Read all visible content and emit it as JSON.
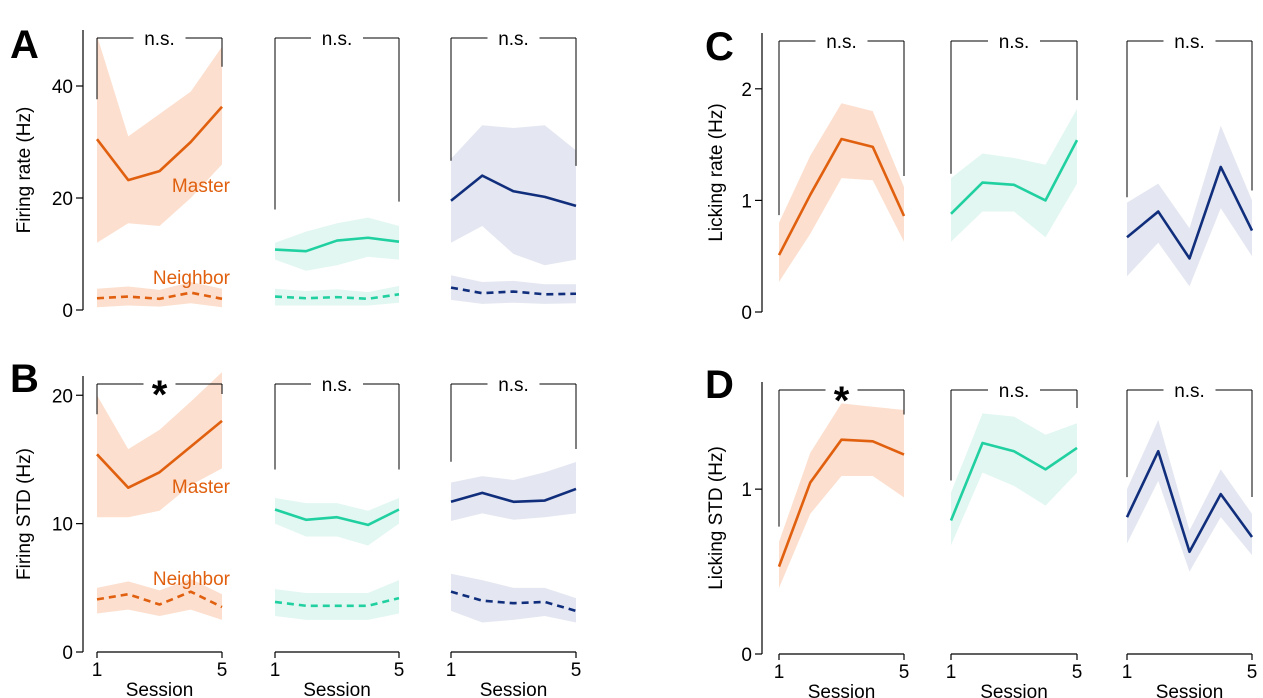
{
  "colors": {
    "orange": "#e0600f",
    "orange_band": "#fbd9c6",
    "teal": "#20d0a0",
    "teal_band": "#ddf6ee",
    "navy": "#102e7c",
    "navy_band": "#dfe3ef"
  },
  "chart_data": [
    {
      "id": "A",
      "type": "line",
      "letter": "A",
      "ylabel": "Firing rate (Hz)",
      "ylim": [
        0,
        50
      ],
      "yticks": [
        "0",
        "20",
        "40"
      ],
      "ytick_values": [
        0,
        20,
        40
      ],
      "xlabel": "",
      "x": [
        1,
        2,
        3,
        4,
        5
      ],
      "groups": [
        {
          "color": "orange",
          "sig": "n.s.",
          "series": [
            {
              "name": "Master",
              "dashed": false,
              "values": [
                30.5,
                23.2,
                24.8,
                30.0,
                36.3
              ],
              "lower": [
                12,
                15.5,
                15,
                20,
                26
              ],
              "upper": [
                49,
                31,
                35,
                39,
                47
              ]
            },
            {
              "name": "Neighbor",
              "dashed": true,
              "values": [
                2.1,
                2.4,
                2.0,
                3.1,
                2.0
              ],
              "lower": [
                0.5,
                0.8,
                0.6,
                1.2,
                0.5
              ],
              "upper": [
                3.8,
                4.2,
                3.6,
                5.0,
                3.8
              ]
            }
          ]
        },
        {
          "color": "teal",
          "sig": "n.s.",
          "series": [
            {
              "name": "",
              "dashed": false,
              "values": [
                10.8,
                10.5,
                12.4,
                12.9,
                12.2
              ],
              "lower": [
                9,
                7,
                8,
                9.5,
                9
              ],
              "upper": [
                12,
                14,
                15.5,
                16.5,
                15
              ]
            },
            {
              "name": "",
              "dashed": true,
              "values": [
                2.4,
                2.1,
                2.3,
                2.0,
                2.8
              ],
              "lower": [
                0.8,
                0.8,
                0.8,
                0.8,
                1.3
              ],
              "upper": [
                3.8,
                3.4,
                3.7,
                3.2,
                4.3
              ]
            }
          ]
        },
        {
          "color": "navy",
          "sig": "n.s.",
          "series": [
            {
              "name": "",
              "dashed": false,
              "values": [
                19.5,
                24.0,
                21.2,
                20.2,
                18.6
              ],
              "lower": [
                12,
                15,
                10,
                8,
                9
              ],
              "upper": [
                27,
                33,
                32.5,
                33,
                28.5
              ]
            },
            {
              "name": "",
              "dashed": true,
              "values": [
                4.0,
                3.0,
                3.3,
                2.8,
                2.9
              ],
              "lower": [
                1.8,
                1.1,
                1.3,
                1.1,
                1.2
              ],
              "upper": [
                6.2,
                5.0,
                5.2,
                4.6,
                4.6
              ]
            }
          ]
        }
      ]
    },
    {
      "id": "B",
      "type": "line",
      "letter": "B",
      "ylabel": "Firing STD (Hz)",
      "ylim": [
        0,
        21.5
      ],
      "yticks": [
        "0",
        "10",
        "20"
      ],
      "ytick_values": [
        0,
        10,
        20
      ],
      "xlabel": "Session",
      "xticks": [
        "1",
        "5"
      ],
      "x": [
        1,
        2,
        3,
        4,
        5
      ],
      "groups": [
        {
          "color": "orange",
          "sig": "*",
          "series": [
            {
              "name": "Master",
              "dashed": false,
              "values": [
                15.4,
                12.8,
                14.0,
                16.0,
                18.0
              ],
              "lower": [
                10.5,
                10.5,
                11.0,
                13.0,
                14.3
              ],
              "upper": [
                20,
                15.8,
                17.3,
                19.5,
                21.8
              ]
            },
            {
              "name": "Neighbor",
              "dashed": true,
              "values": [
                4.1,
                4.5,
                3.7,
                4.7,
                3.5
              ],
              "lower": [
                3.0,
                3.3,
                2.8,
                3.3,
                2.5
              ],
              "upper": [
                5.0,
                5.5,
                4.8,
                5.7,
                4.5
              ]
            }
          ]
        },
        {
          "color": "teal",
          "sig": "n.s.",
          "series": [
            {
              "name": "",
              "dashed": false,
              "values": [
                11.1,
                10.3,
                10.5,
                9.9,
                11.1
              ],
              "lower": [
                10,
                9,
                9,
                8.3,
                10
              ],
              "upper": [
                12,
                11.6,
                11.6,
                11,
                12
              ]
            },
            {
              "name": "",
              "dashed": true,
              "values": [
                3.9,
                3.6,
                3.6,
                3.6,
                4.2
              ],
              "lower": [
                2.8,
                2.5,
                2.5,
                2.5,
                3.0
              ],
              "upper": [
                4.9,
                4.6,
                4.6,
                4.6,
                5.6
              ]
            }
          ]
        },
        {
          "color": "navy",
          "sig": "n.s.",
          "series": [
            {
              "name": "",
              "dashed": false,
              "values": [
                11.7,
                12.4,
                11.7,
                11.8,
                12.7
              ],
              "lower": [
                10.2,
                10.8,
                10.3,
                10.5,
                10.8
              ],
              "upper": [
                13.2,
                13.7,
                13.4,
                14.0,
                14.8
              ]
            },
            {
              "name": "",
              "dashed": true,
              "values": [
                4.7,
                4.0,
                3.8,
                3.9,
                3.2
              ],
              "lower": [
                3.2,
                2.3,
                2.5,
                2.8,
                2.3
              ],
              "upper": [
                6.1,
                5.6,
                5.0,
                5.0,
                4.2
              ]
            }
          ]
        }
      ]
    },
    {
      "id": "C",
      "type": "line",
      "letter": "C",
      "ylabel": "Licking rate (Hz)",
      "ylim": [
        0,
        2.5
      ],
      "yticks": [
        "0",
        "1",
        "2"
      ],
      "ytick_values": [
        0,
        1,
        2
      ],
      "xlabel": "",
      "x": [
        1,
        2,
        3,
        4,
        5
      ],
      "groups": [
        {
          "color": "orange",
          "sig": "n.s.",
          "series": [
            {
              "name": "",
              "dashed": false,
              "values": [
                0.51,
                1.05,
                1.55,
                1.48,
                0.86
              ],
              "lower": [
                0.27,
                0.7,
                1.2,
                1.18,
                0.63
              ],
              "upper": [
                0.8,
                1.4,
                1.87,
                1.8,
                1.12
              ]
            }
          ]
        },
        {
          "color": "teal",
          "sig": "n.s.",
          "series": [
            {
              "name": "",
              "dashed": false,
              "values": [
                0.88,
                1.16,
                1.14,
                1.0,
                1.54
              ],
              "lower": [
                0.63,
                0.9,
                0.9,
                0.67,
                1.15
              ],
              "upper": [
                1.2,
                1.42,
                1.38,
                1.32,
                1.82
              ]
            }
          ]
        },
        {
          "color": "navy",
          "sig": "n.s.",
          "series": [
            {
              "name": "",
              "dashed": false,
              "values": [
                0.67,
                0.9,
                0.48,
                1.3,
                0.73
              ],
              "lower": [
                0.32,
                0.62,
                0.23,
                0.93,
                0.5
              ],
              "upper": [
                0.98,
                1.15,
                0.75,
                1.67,
                1.0
              ]
            }
          ]
        }
      ]
    },
    {
      "id": "D",
      "type": "line",
      "letter": "D",
      "ylabel": "Licking STD (Hz)",
      "ylim": [
        0,
        1.65
      ],
      "yticks": [
        "0",
        "1"
      ],
      "ytick_values": [
        0,
        1
      ],
      "xlabel": "Session",
      "xticks": [
        "1",
        "5"
      ],
      "x": [
        1,
        2,
        3,
        4,
        5
      ],
      "groups": [
        {
          "color": "orange",
          "sig": "*",
          "series": [
            {
              "name": "",
              "dashed": false,
              "values": [
                0.53,
                1.04,
                1.3,
                1.29,
                1.21
              ],
              "lower": [
                0.4,
                0.85,
                1.08,
                1.08,
                0.95
              ],
              "upper": [
                0.68,
                1.22,
                1.52,
                1.5,
                1.48
              ]
            }
          ]
        },
        {
          "color": "teal",
          "sig": "n.s.",
          "series": [
            {
              "name": "",
              "dashed": false,
              "values": [
                0.81,
                1.28,
                1.23,
                1.12,
                1.25
              ],
              "lower": [
                0.66,
                1.1,
                1.02,
                0.9,
                1.1
              ],
              "upper": [
                0.98,
                1.46,
                1.44,
                1.33,
                1.4
              ]
            }
          ]
        },
        {
          "color": "navy",
          "sig": "n.s.",
          "series": [
            {
              "name": "",
              "dashed": false,
              "values": [
                0.83,
                1.23,
                0.62,
                0.97,
                0.71
              ],
              "lower": [
                0.67,
                1.05,
                0.5,
                0.83,
                0.6
              ],
              "upper": [
                1.0,
                1.42,
                0.75,
                1.12,
                0.85
              ]
            }
          ]
        }
      ]
    }
  ]
}
